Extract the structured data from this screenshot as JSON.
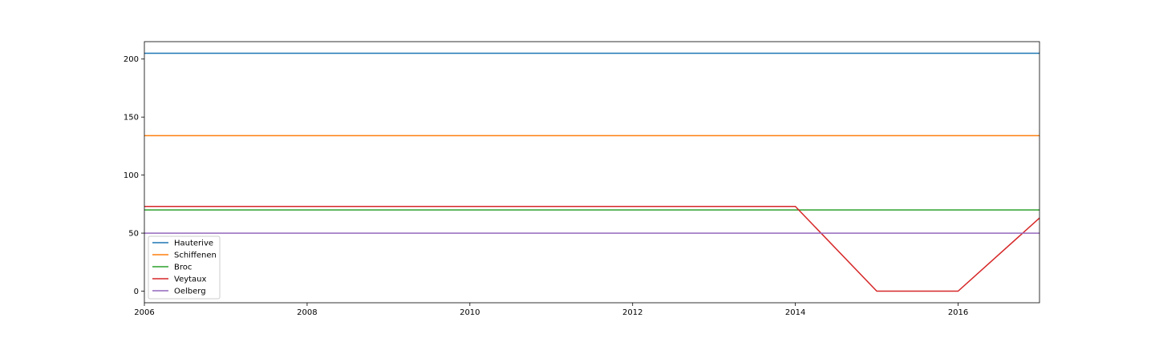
{
  "chart_data": {
    "type": "line",
    "title": "",
    "xlabel": "",
    "ylabel": "",
    "xlim": [
      2006,
      2017
    ],
    "ylim": [
      -10,
      215
    ],
    "xticks": [
      2006,
      2008,
      2010,
      2012,
      2014,
      2016
    ],
    "yticks": [
      0,
      50,
      100,
      150,
      200
    ],
    "grid": false,
    "legend_position": "lower-left",
    "x": [
      2006,
      2007,
      2008,
      2009,
      2010,
      2011,
      2012,
      2013,
      2014,
      2015,
      2016,
      2017
    ],
    "series": [
      {
        "name": "Hauterive",
        "color": "#1f77b4",
        "values": [
          205,
          205,
          205,
          205,
          205,
          205,
          205,
          205,
          205,
          205,
          205,
          205
        ]
      },
      {
        "name": "Schiffenen",
        "color": "#ff7f0e",
        "values": [
          134,
          134,
          134,
          134,
          134,
          134,
          134,
          134,
          134,
          134,
          134,
          134
        ]
      },
      {
        "name": "Broc",
        "color": "#2ca02c",
        "values": [
          70,
          70,
          70,
          70,
          70,
          70,
          70,
          70,
          70,
          70,
          70,
          70
        ]
      },
      {
        "name": "Veytaux",
        "color": "#d62728",
        "values": [
          73,
          73,
          73,
          73,
          73,
          73,
          73,
          73,
          73,
          0,
          0,
          63
        ]
      },
      {
        "name": "Oelberg",
        "color": "#9467bd",
        "values": [
          50,
          50,
          50,
          50,
          50,
          50,
          50,
          50,
          50,
          50,
          50,
          50
        ]
      }
    ]
  }
}
